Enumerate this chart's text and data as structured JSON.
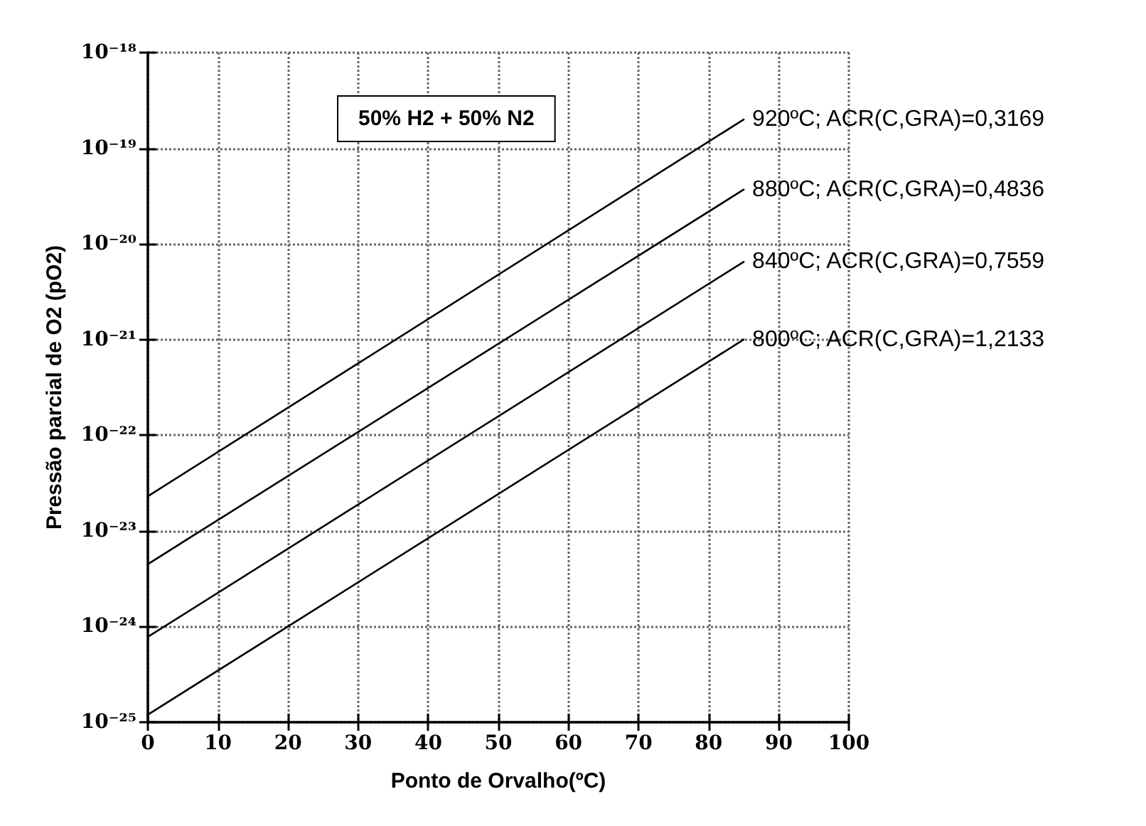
{
  "chart_data": {
    "type": "line",
    "xlabel": "Ponto de Orvalho(ºC)",
    "ylabel": "Pressão parcial de O2 (pO2)",
    "annotations": [
      "50% H2 + 50% N2"
    ],
    "x": [
      0,
      85
    ],
    "series": [
      {
        "name": "920ºC; ACR(C,GRA)=0,3169",
        "color": "#000000",
        "values": [
          2.3e-23,
          2e-19
        ]
      },
      {
        "name": "880ºC; ACR(C,GRA)=0,4836",
        "color": "#000000",
        "values": [
          4.5e-24,
          3.7e-20
        ]
      },
      {
        "name": "840ºC; ACR(C,GRA)=0,7559",
        "color": "#000000",
        "values": [
          7.8e-25,
          6.5e-21
        ]
      },
      {
        "name": "800ºC; ACR(C,GRA)=1,2133",
        "color": "#000000",
        "values": [
          1.2e-25,
          1e-21
        ]
      }
    ],
    "xlim": [
      0,
      100
    ],
    "xticks": [
      0,
      10,
      20,
      30,
      40,
      50,
      60,
      70,
      80,
      90,
      100
    ],
    "ylim": [
      1e-25,
      1e-18
    ],
    "yticks": [
      {
        "value": 1e-25,
        "label": "10⁻²⁵"
      },
      {
        "value": 1e-24,
        "label": "10⁻²⁴"
      },
      {
        "value": 1e-23,
        "label": "10⁻²³"
      },
      {
        "value": 1e-22,
        "label": "10⁻²²"
      },
      {
        "value": 1e-21,
        "label": "10⁻²¹"
      },
      {
        "value": 1e-20,
        "label": "10⁻²⁰"
      },
      {
        "value": 1e-19,
        "label": "10⁻¹⁹"
      },
      {
        "value": 1e-18,
        "label": "10⁻¹⁸"
      }
    ],
    "log": "y",
    "grid": true,
    "marker": "none",
    "line_style": "solid"
  }
}
